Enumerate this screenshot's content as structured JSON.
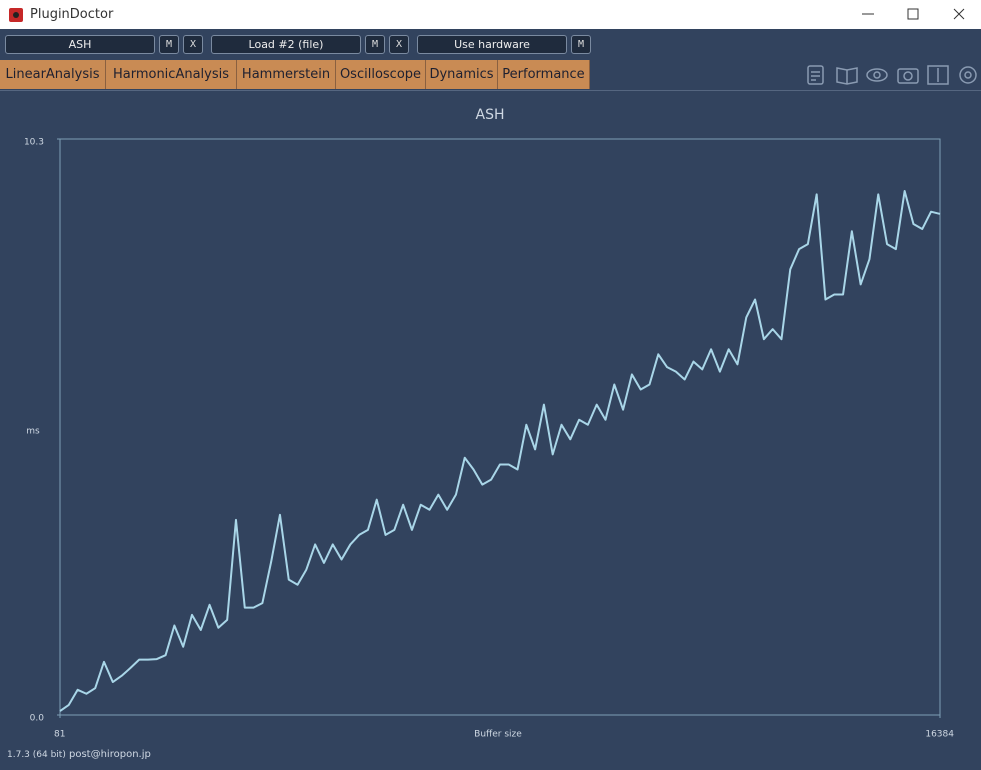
{
  "window": {
    "title": "PluginDoctor"
  },
  "toolbar": {
    "slots": [
      {
        "label": "ASH",
        "buttons": [
          "M",
          "X"
        ]
      },
      {
        "label": "Load #2 (file)",
        "buttons": [
          "M",
          "X"
        ]
      },
      {
        "label": "Use hardware",
        "buttons": [
          "M"
        ]
      }
    ]
  },
  "tabs": [
    "LinearAnalysis",
    "HarmonicAnalysis",
    "Hammerstein",
    "Oscilloscope",
    "Dynamics",
    "Performance"
  ],
  "chart_data": {
    "type": "line",
    "title": "ASH",
    "x_label": "Buffer size",
    "y_label": "ms",
    "color": "#a9d6e8",
    "x": [
      81,
      244,
      407,
      570,
      733,
      896,
      1059,
      1222,
      1385,
      1548,
      1711,
      1874,
      2037,
      2200,
      2363,
      2526,
      2689,
      2852,
      3015,
      3178,
      3341,
      3504,
      3667,
      3830,
      3993,
      4156,
      4319,
      4482,
      4645,
      4808,
      4971,
      5134,
      5297,
      5460,
      5623,
      5786,
      5949,
      6112,
      6275,
      6438,
      6601,
      6764,
      6927,
      7090,
      7253,
      7416,
      7579,
      7742,
      7905,
      8068,
      8231,
      8394,
      8557,
      8720,
      8883,
      9046,
      9209,
      9372,
      9535,
      9698,
      9861,
      10024,
      10187,
      10350,
      10513,
      10676,
      10839,
      11002,
      11165,
      11328,
      11491,
      11654,
      11817,
      11980,
      12143,
      12306,
      12469,
      12632,
      12795,
      12958,
      13121,
      13284,
      13447,
      13610,
      13773,
      13936,
      14099,
      14262,
      14425,
      14588,
      14751,
      14914,
      15077,
      15240,
      15403,
      15566,
      15729,
      15892,
      16055,
      16218,
      16384
    ],
    "values": [
      0.07,
      0.18,
      0.45,
      0.38,
      0.48,
      0.95,
      0.59,
      0.7,
      0.84,
      0.99,
      0.99,
      1.0,
      1.07,
      1.6,
      1.22,
      1.79,
      1.52,
      1.97,
      1.56,
      1.7,
      3.49,
      1.92,
      1.92,
      2.0,
      2.74,
      3.58,
      2.42,
      2.33,
      2.6,
      3.05,
      2.72,
      3.05,
      2.78,
      3.05,
      3.22,
      3.31,
      3.85,
      3.22,
      3.31,
      3.76,
      3.31,
      3.76,
      3.67,
      3.94,
      3.67,
      3.94,
      4.6,
      4.39,
      4.12,
      4.21,
      4.48,
      4.48,
      4.39,
      5.19,
      4.75,
      5.55,
      4.66,
      5.19,
      4.93,
      5.28,
      5.19,
      5.55,
      5.28,
      5.91,
      5.46,
      6.09,
      5.82,
      5.91,
      6.45,
      6.22,
      6.14,
      6.0,
      6.32,
      6.18,
      6.54,
      6.14,
      6.54,
      6.27,
      7.11,
      7.43,
      6.72,
      6.9,
      6.72,
      7.97,
      8.33,
      8.42,
      9.31,
      7.43,
      7.52,
      7.52,
      8.65,
      7.7,
      8.15,
      9.31,
      8.42,
      8.33,
      9.37,
      8.78,
      8.69,
      9.0,
      8.96
    ],
    "xlim": [
      81,
      16384
    ],
    "ylim": [
      0,
      10.3
    ],
    "xticks": [
      81,
      16384
    ],
    "yticks": [
      {
        "value": 0,
        "label": "0.0"
      },
      10.3
    ]
  },
  "footer": {
    "version": "1.7.3 (64 bit)",
    "email": "post@hiropon.jp"
  }
}
